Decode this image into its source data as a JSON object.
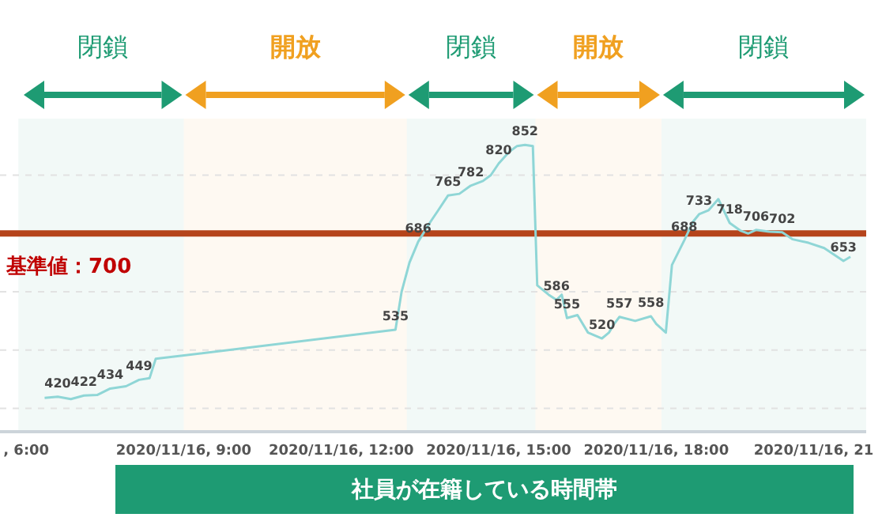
{
  "chart_data": {
    "type": "line",
    "x": [
      "2020-11-16T06:21",
      "2020-11-16T06:36",
      "2020-11-16T06:51",
      "2020-11-16T07:06",
      "2020-11-16T07:21",
      "2020-11-16T07:36",
      "2020-11-16T07:54",
      "2020-11-16T08:09",
      "2020-11-16T08:21",
      "2020-11-16T08:28",
      "2020-11-16T13:02",
      "2020-11-16T13:09",
      "2020-11-16T13:18",
      "2020-11-16T13:28",
      "2020-11-16T13:42",
      "2020-11-16T13:51",
      "2020-11-16T14:02",
      "2020-11-16T14:15",
      "2020-11-16T14:28",
      "2020-11-16T14:42",
      "2020-11-16T14:51",
      "2020-11-16T15:00",
      "2020-11-16T15:12",
      "2020-11-16T15:21",
      "2020-11-16T15:30",
      "2020-11-16T15:39",
      "2020-11-16T15:44",
      "2020-11-16T15:57",
      "2020-11-16T16:06",
      "2020-11-16T16:12",
      "2020-11-16T16:18",
      "2020-11-16T16:30",
      "2020-11-16T16:42",
      "2020-11-16T16:58",
      "2020-11-16T17:06",
      "2020-11-16T17:12",
      "2020-11-16T17:18",
      "2020-11-16T17:36",
      "2020-11-16T17:54",
      "2020-11-16T18:00",
      "2020-11-16T18:11",
      "2020-11-16T18:18",
      "2020-11-16T18:32",
      "2020-11-16T18:42",
      "2020-11-16T18:49",
      "2020-11-16T19:00",
      "2020-11-16T19:11",
      "2020-11-16T19:24",
      "2020-11-16T19:36",
      "2020-11-16T19:45",
      "2020-11-16T19:54",
      "2020-11-16T20:09",
      "2020-11-16T20:24",
      "2020-11-16T20:36",
      "2020-11-16T20:54",
      "2020-11-16T21:12",
      "2020-11-16T21:34",
      "2020-11-16T21:42"
    ],
    "series": [
      {
        "color": "#8fd6d6",
        "values": [
          418,
          420,
          416,
          422,
          423,
          434,
          438,
          449,
          452,
          485,
          535,
          600,
          650,
          686,
          720,
          740,
          765,
          768,
          782,
          790,
          800,
          820,
          840,
          850,
          852,
          850,
          611,
          595,
          586,
          595,
          555,
          560,
          530,
          520,
          530,
          545,
          557,
          550,
          558,
          545,
          530,
          646,
          688,
          720,
          733,
          740,
          759,
          718,
          705,
          700,
          706,
          703,
          702,
          690,
          684,
          675,
          653,
          660
        ],
        "value_labels": [
          null,
          "420",
          null,
          "422",
          null,
          "434",
          null,
          "449",
          null,
          null,
          "535",
          null,
          null,
          "686",
          null,
          null,
          "765",
          null,
          "782",
          null,
          null,
          "820",
          null,
          null,
          "852",
          null,
          null,
          null,
          "586",
          null,
          "555",
          null,
          null,
          "520",
          null,
          null,
          "557",
          null,
          "558",
          null,
          null,
          null,
          "688",
          null,
          "733",
          null,
          null,
          "718",
          null,
          null,
          "706",
          null,
          "702",
          null,
          null,
          null,
          "653",
          null
        ]
      }
    ],
    "xlim": [
      "2020-11-16T05:30",
      "2020-11-16T22:00"
    ],
    "xticks": [
      {
        "value": "2020-11-16T06:00",
        "label": ", 6:00"
      },
      {
        "value": "2020-11-16T09:00",
        "label": "2020/11/16, 9:00"
      },
      {
        "value": "2020-11-16T12:00",
        "label": "2020/11/16, 12:00"
      },
      {
        "value": "2020-11-16T15:00",
        "label": "2020/11/16, 15:00"
      },
      {
        "value": "2020-11-16T18:00",
        "label": "2020/11/16, 18:00"
      },
      {
        "value": "2020-11-16T21:00",
        "label": "2020/11/16, 21"
      }
    ],
    "yticks": [
      {
        "value": 400,
        "label": null
      },
      {
        "value": 500,
        "label": null
      },
      {
        "value": 600,
        "label": null
      },
      {
        "value": 700,
        "label": null
      },
      {
        "value": 800,
        "label": null
      }
    ],
    "tick_labels": "x",
    "grid": "y",
    "marker": "none",
    "line_style": "solid",
    "ref_lines": [
      {
        "axis": "y",
        "value": 700,
        "label": "基準値：700",
        "color": "#b5441b"
      }
    ],
    "bands": [
      {
        "axis": "x",
        "from": "2020-11-16T05:51",
        "to": "2020-11-16T09:00",
        "label": "閉鎖",
        "color": "#1e9b73"
      },
      {
        "axis": "x",
        "from": "2020-11-16T09:00",
        "to": "2020-11-16T13:15",
        "label": "開放",
        "color": "#f0a020"
      },
      {
        "axis": "x",
        "from": "2020-11-16T13:15",
        "to": "2020-11-16T15:42",
        "label": "閉鎖",
        "color": "#1e9b73"
      },
      {
        "axis": "x",
        "from": "2020-11-16T15:42",
        "to": "2020-11-16T18:06",
        "label": "開放",
        "color": "#f0a020"
      },
      {
        "axis": "x",
        "from": "2020-11-16T18:06",
        "to": "2020-11-16T22:00",
        "label": "閉鎖",
        "color": "#1e9b73"
      }
    ],
    "annotations": [
      "社員が在籍している時間帯"
    ]
  }
}
